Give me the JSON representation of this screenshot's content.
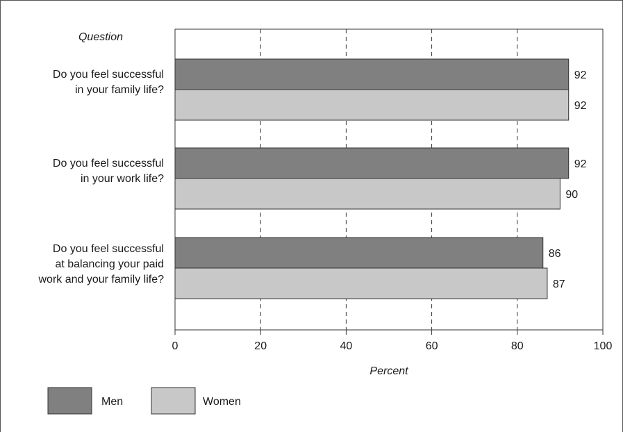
{
  "chart_data": {
    "type": "bar",
    "orientation": "horizontal",
    "categories_heading": "Question",
    "categories": [
      [
        "Do you feel successful",
        "in your family life?"
      ],
      [
        "Do you feel successful",
        "in your work life?"
      ],
      [
        "Do you feel successful",
        "at balancing your paid",
        "work and your family life?"
      ]
    ],
    "series": [
      {
        "name": "Men",
        "values": [
          92,
          92,
          86
        ],
        "color": "#808080"
      },
      {
        "name": "Women",
        "values": [
          92,
          90,
          87
        ],
        "color": "#c8c8c8"
      }
    ],
    "xlabel": "Percent",
    "xlim": [
      0,
      100
    ],
    "xticks": [
      "0",
      "20",
      "40",
      "60",
      "80",
      "100"
    ],
    "grid": "vertical dashed",
    "legend": "bottom-left"
  }
}
